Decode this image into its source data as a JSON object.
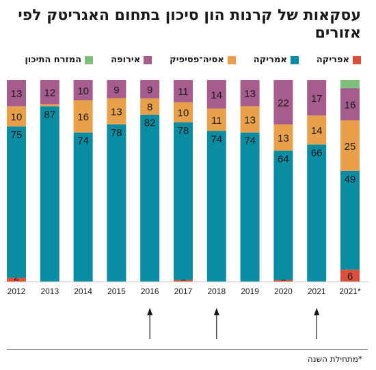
{
  "title": "עסקאות של קרנות הון סיכון בתחום האגריטק לפי אזורים",
  "footnote": "*מתחילת השנה",
  "colors": {
    "africa": "#d9503a",
    "america": "#0a8ca3",
    "asia_pacific": "#e8a04a",
    "europe": "#a65d8e",
    "middle_east": "#7ebf7b"
  },
  "legend": [
    {
      "key": "africa",
      "label": "אפריקה"
    },
    {
      "key": "america",
      "label": "אמריקה"
    },
    {
      "key": "asia_pacific",
      "label": "אסיה־פסיפיק"
    },
    {
      "key": "europe",
      "label": "אירופה"
    },
    {
      "key": "middle_east",
      "label": "המזרח התיכון"
    }
  ],
  "chart_data": {
    "type": "bar",
    "stacked": true,
    "normalized_to_percent": true,
    "categories": [
      "2012",
      "2013",
      "2014",
      "2015",
      "2016",
      "2017",
      "2018",
      "2019",
      "2020",
      "2021",
      "2021*"
    ],
    "series": [
      {
        "name": "אפריקה",
        "key": "africa",
        "values": [
          2,
          0,
          0,
          0,
          0,
          1,
          0,
          0,
          1,
          0,
          6
        ]
      },
      {
        "name": "אמריקה",
        "key": "america",
        "values": [
          75,
          87,
          74,
          78,
          82,
          78,
          74,
          74,
          64,
          66,
          49
        ]
      },
      {
        "name": "אסיה־פסיפיק",
        "key": "asia_pacific",
        "values": [
          10,
          1,
          16,
          13,
          8,
          10,
          11,
          13,
          13,
          14,
          25
        ]
      },
      {
        "name": "אירופה",
        "key": "europe",
        "values": [
          13,
          12,
          10,
          9,
          9,
          11,
          14,
          13,
          22,
          17,
          16
        ]
      },
      {
        "name": "המזרח התיכון",
        "key": "middle_east",
        "values": [
          0,
          0,
          0,
          0,
          0,
          0,
          0,
          0,
          0,
          0,
          4
        ]
      }
    ],
    "data_labels": {
      "africa": [
        "2",
        "",
        "",
        "",
        "",
        "1",
        "",
        "",
        "1",
        "",
        "6"
      ],
      "america": [
        "75",
        "87",
        "74",
        "78",
        "82",
        "78",
        "74",
        "74",
        "64",
        "66",
        "49"
      ],
      "asia_pacific": [
        "10",
        "",
        "16",
        "13",
        "8",
        "10",
        "11",
        "13",
        "13",
        "14",
        "25"
      ],
      "europe": [
        "13",
        "12",
        "10",
        "9",
        "9",
        "11",
        "14",
        "13",
        "22",
        "17",
        "16"
      ],
      "middle_east": [
        "",
        "",
        "",
        "",
        "",
        "",
        "",
        "",
        "",
        "",
        ""
      ]
    },
    "arrow_marked_categories": [
      "2016",
      "2018",
      "2021"
    ],
    "xlabel": "",
    "ylabel": "",
    "grid": false,
    "legend_position": "top"
  }
}
